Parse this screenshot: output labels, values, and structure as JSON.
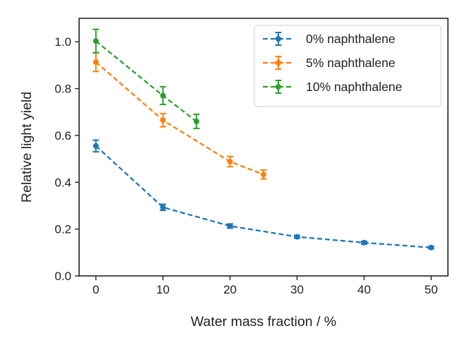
{
  "chart_data": {
    "type": "line",
    "xlabel": "Water mass fraction / %",
    "ylabel": "Relative light yield",
    "xlim": [
      -2.5,
      52.5
    ],
    "ylim": [
      0,
      1.1
    ],
    "xticks": [
      0,
      10,
      20,
      30,
      40,
      50
    ],
    "yticks": [
      0.0,
      0.2,
      0.4,
      0.6,
      0.8,
      1.0
    ],
    "xtick_labels": [
      "0",
      "10",
      "20",
      "30",
      "40",
      "50"
    ],
    "ytick_labels": [
      "0.0",
      "0.2",
      "0.4",
      "0.6",
      "0.8",
      "1.0"
    ],
    "grid": false,
    "legend_position": "top-right",
    "series": [
      {
        "name": "0% naphthalene",
        "color": "#1f77b4",
        "x": [
          0,
          10,
          20,
          30,
          40,
          50
        ],
        "y": [
          0.555,
          0.293,
          0.213,
          0.167,
          0.142,
          0.121
        ],
        "yerr": [
          0.025,
          0.013,
          0.009,
          0.006,
          0.006,
          0.005
        ]
      },
      {
        "name": "5% naphthalene",
        "color": "#ff7f0e",
        "x": [
          0,
          10,
          20,
          25
        ],
        "y": [
          0.913,
          0.665,
          0.488,
          0.433
        ],
        "yerr": [
          0.04,
          0.028,
          0.022,
          0.019
        ]
      },
      {
        "name": "10% naphthalene",
        "color": "#2ca02c",
        "x": [
          0,
          10,
          15
        ],
        "y": [
          1.003,
          0.77,
          0.66
        ],
        "yerr": [
          0.05,
          0.038,
          0.03
        ]
      }
    ]
  }
}
